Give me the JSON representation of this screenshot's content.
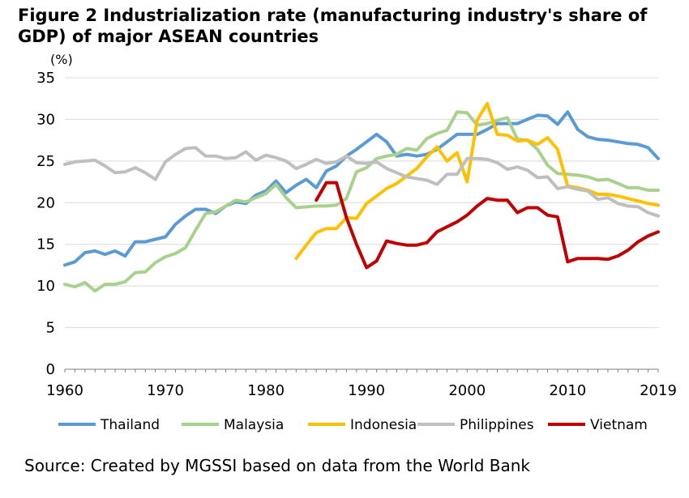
{
  "chart_data": {
    "type": "line",
    "title": "Figure 2 Industrialization rate (manufacturing industry's share of GDP) of major ASEAN countries",
    "ylabel": "(%)",
    "xlabel": "",
    "xlim": [
      1960,
      2019
    ],
    "ylim": [
      0,
      35
    ],
    "y_ticks": [
      0,
      5,
      10,
      15,
      20,
      25,
      30,
      35
    ],
    "x_ticks": [
      {
        "value": 1960,
        "label": "1960"
      },
      {
        "value": 1970,
        "label": "1970"
      },
      {
        "value": 1980,
        "label": "1980"
      },
      {
        "value": 1990,
        "label": "1990"
      },
      {
        "value": 2000,
        "label": "2000"
      },
      {
        "value": 2010,
        "label": "2010"
      },
      {
        "value": 2019,
        "label": "2019"
      }
    ],
    "grid": true,
    "legend_position": "bottom",
    "series": [
      {
        "name": "Thailand",
        "color": "#5b9bd5",
        "x": [
          1960,
          1961,
          1962,
          1963,
          1964,
          1965,
          1966,
          1967,
          1968,
          1969,
          1970,
          1971,
          1972,
          1973,
          1974,
          1975,
          1976,
          1977,
          1978,
          1979,
          1980,
          1981,
          1982,
          1983,
          1984,
          1985,
          1986,
          1987,
          1988,
          1989,
          1990,
          1991,
          1992,
          1993,
          1994,
          1995,
          1996,
          1997,
          1998,
          1999,
          2000,
          2001,
          2002,
          2003,
          2004,
          2005,
          2006,
          2007,
          2008,
          2009,
          2010,
          2011,
          2012,
          2013,
          2014,
          2015,
          2016,
          2017,
          2018,
          2019
        ],
        "y": [
          12.5,
          12.9,
          14.0,
          14.2,
          13.8,
          14.2,
          13.6,
          15.3,
          15.3,
          15.6,
          15.9,
          17.4,
          18.4,
          19.2,
          19.2,
          18.7,
          19.6,
          20.1,
          19.9,
          20.9,
          21.4,
          22.6,
          21.2,
          22.1,
          22.8,
          21.8,
          23.8,
          24.4,
          25.6,
          26.4,
          27.3,
          28.2,
          27.3,
          25.6,
          25.8,
          25.6,
          25.8,
          26.4,
          27.3,
          28.2,
          28.2,
          28.2,
          28.8,
          29.5,
          29.5,
          29.5,
          30.0,
          30.5,
          30.4,
          29.4,
          30.9,
          28.8,
          27.9,
          27.6,
          27.5,
          27.3,
          27.1,
          27.0,
          26.6,
          25.3
        ]
      },
      {
        "name": "Malaysia",
        "color": "#a9d18e",
        "x": [
          1960,
          1961,
          1962,
          1963,
          1964,
          1965,
          1966,
          1967,
          1968,
          1969,
          1970,
          1971,
          1972,
          1973,
          1974,
          1975,
          1976,
          1977,
          1978,
          1979,
          1980,
          1981,
          1982,
          1983,
          1984,
          1985,
          1986,
          1987,
          1988,
          1989,
          1990,
          1991,
          1992,
          1993,
          1994,
          1995,
          1996,
          1997,
          1998,
          1999,
          2000,
          2001,
          2002,
          2003,
          2004,
          2005,
          2006,
          2007,
          2008,
          2009,
          2010,
          2011,
          2012,
          2013,
          2014,
          2015,
          2016,
          2017,
          2018,
          2019
        ],
        "y": [
          10.2,
          9.9,
          10.4,
          9.4,
          10.2,
          10.2,
          10.5,
          11.6,
          11.7,
          12.8,
          13.5,
          13.9,
          14.6,
          16.7,
          18.7,
          18.9,
          19.6,
          20.3,
          20.1,
          20.6,
          21.1,
          22.2,
          20.6,
          19.4,
          19.5,
          19.6,
          19.6,
          19.7,
          20.5,
          23.7,
          24.2,
          25.3,
          25.6,
          25.8,
          26.5,
          26.3,
          27.7,
          28.3,
          28.7,
          30.9,
          30.8,
          29.3,
          29.5,
          29.9,
          30.2,
          27.6,
          27.5,
          26.4,
          24.5,
          23.5,
          23.4,
          23.3,
          23.1,
          22.7,
          22.8,
          22.3,
          21.8,
          21.8,
          21.5,
          21.5
        ]
      },
      {
        "name": "Indonesia",
        "color": "#ffc000",
        "x": [
          1983,
          1984,
          1985,
          1986,
          1987,
          1988,
          1989,
          1990,
          1991,
          1992,
          1993,
          1994,
          1995,
          1996,
          1997,
          1998,
          1999,
          2000,
          2001,
          2002,
          2003,
          2004,
          2005,
          2006,
          2007,
          2008,
          2009,
          2010,
          2011,
          2012,
          2013,
          2014,
          2015,
          2016,
          2017,
          2018,
          2019
        ],
        "y": [
          13.3,
          14.9,
          16.4,
          16.9,
          16.9,
          18.2,
          18.1,
          19.9,
          20.8,
          21.7,
          22.3,
          23.2,
          24.1,
          25.5,
          26.7,
          25.0,
          26.0,
          22.5,
          29.9,
          31.9,
          28.2,
          28.1,
          27.4,
          27.5,
          27.0,
          27.8,
          26.4,
          22.0,
          21.8,
          21.5,
          21.0,
          21.0,
          20.8,
          20.5,
          20.2,
          19.9,
          19.7
        ]
      },
      {
        "name": "Philippines",
        "color": "#bfbfbf",
        "x": [
          1960,
          1961,
          1962,
          1963,
          1964,
          1965,
          1966,
          1967,
          1968,
          1969,
          1970,
          1971,
          1972,
          1973,
          1974,
          1975,
          1976,
          1977,
          1978,
          1979,
          1980,
          1981,
          1982,
          1983,
          1984,
          1985,
          1986,
          1987,
          1988,
          1989,
          1990,
          1991,
          1992,
          1993,
          1994,
          1995,
          1996,
          1997,
          1998,
          1999,
          2000,
          2001,
          2002,
          2003,
          2004,
          2005,
          2006,
          2007,
          2008,
          2009,
          2010,
          2011,
          2012,
          2013,
          2014,
          2015,
          2016,
          2017,
          2018,
          2019
        ],
        "y": [
          24.6,
          24.9,
          25.0,
          25.1,
          24.4,
          23.6,
          23.7,
          24.2,
          23.6,
          22.8,
          24.9,
          25.8,
          26.5,
          26.6,
          25.6,
          25.6,
          25.3,
          25.4,
          26.1,
          25.1,
          25.7,
          25.4,
          25.0,
          24.1,
          24.6,
          25.2,
          24.7,
          24.9,
          25.6,
          24.8,
          24.7,
          24.9,
          24.1,
          23.6,
          23.1,
          22.9,
          22.7,
          22.2,
          23.4,
          23.4,
          25.3,
          25.3,
          25.2,
          24.8,
          24.0,
          24.3,
          23.9,
          23.0,
          23.1,
          21.7,
          21.9,
          21.6,
          21.4,
          20.4,
          20.6,
          19.9,
          19.6,
          19.5,
          18.8,
          18.4
        ]
      },
      {
        "name": "Vietnam",
        "color": "#c00000",
        "x": [
          1985,
          1986,
          1987,
          1988,
          1989,
          1990,
          1991,
          1992,
          1993,
          1994,
          1995,
          1996,
          1997,
          1998,
          1999,
          2000,
          2001,
          2002,
          2003,
          2004,
          2005,
          2006,
          2007,
          2008,
          2009,
          2010,
          2011,
          2012,
          2013,
          2014,
          2015,
          2016,
          2017,
          2018,
          2019
        ],
        "y": [
          20.3,
          22.4,
          22.4,
          18.2,
          15.0,
          12.2,
          13.0,
          15.4,
          15.1,
          14.9,
          14.9,
          15.2,
          16.5,
          17.1,
          17.7,
          18.5,
          19.6,
          20.5,
          20.3,
          20.3,
          18.8,
          19.4,
          19.4,
          18.5,
          18.3,
          12.9,
          13.3,
          13.3,
          13.3,
          13.2,
          13.6,
          14.3,
          15.3,
          16.0,
          16.5
        ]
      }
    ]
  },
  "source": "Source: Created by MGSSI based on data from the World Bank"
}
